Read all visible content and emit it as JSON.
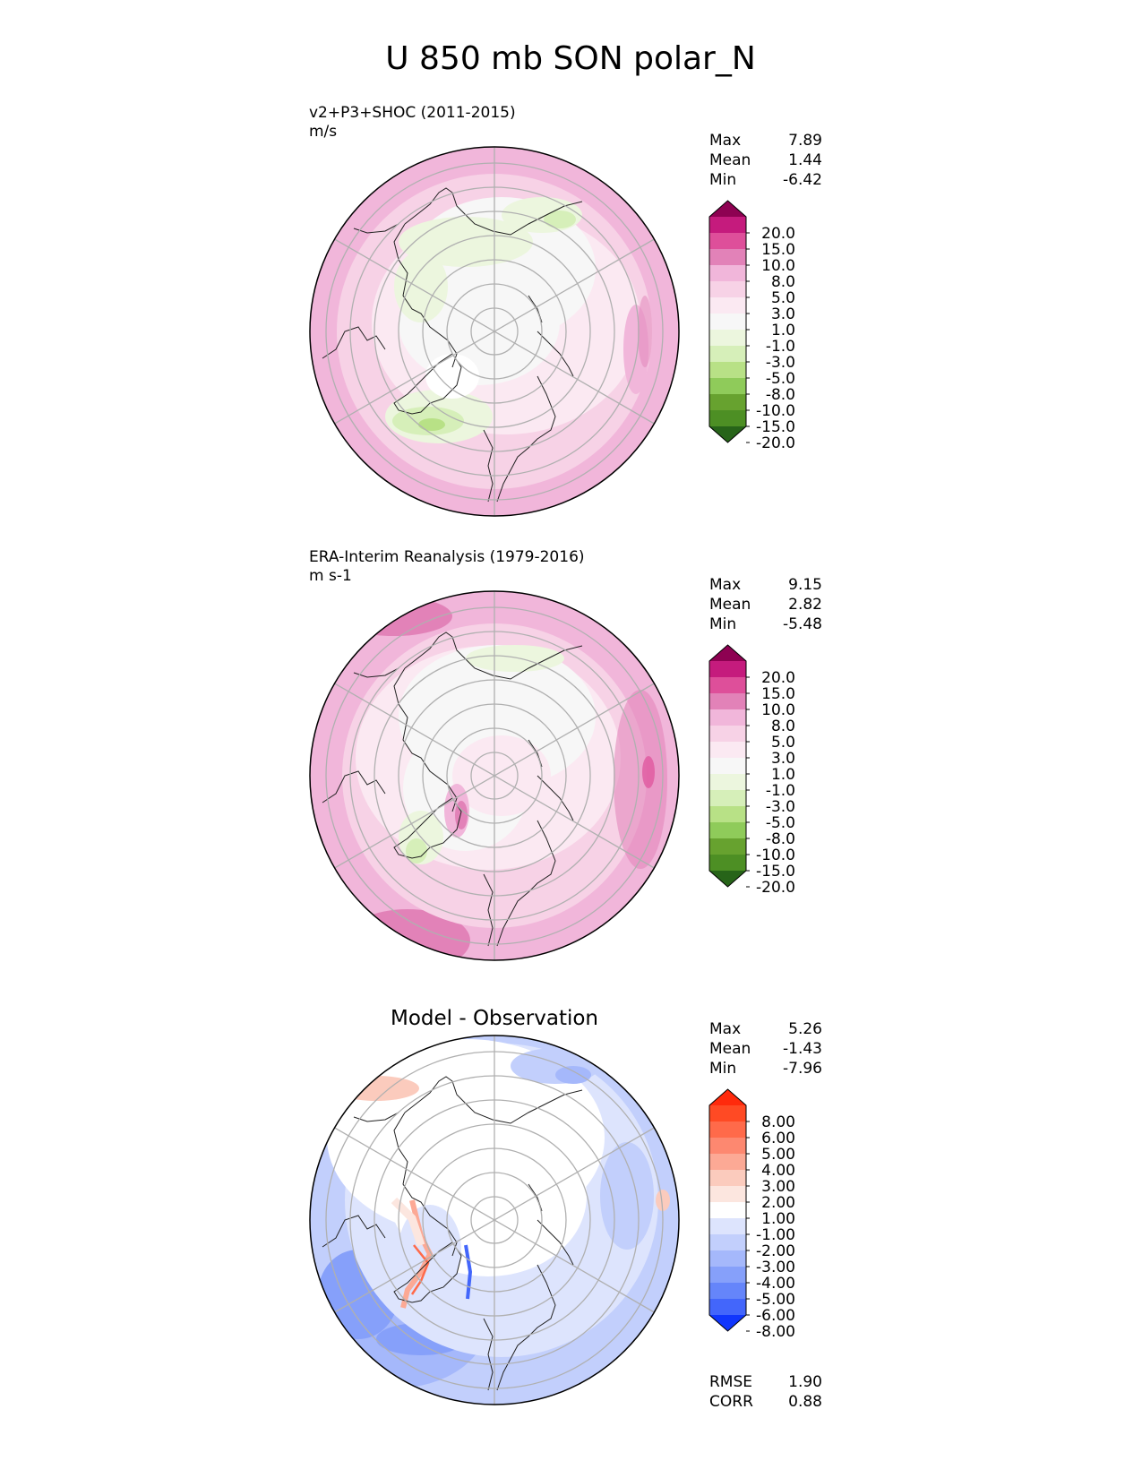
{
  "figure": {
    "title": "U 850 mb SON polar_N"
  },
  "panels": [
    {
      "id": "model",
      "name": "v2+P3+SHOC (2011-2015)",
      "units": "m/s",
      "stats": [
        {
          "label": "Max",
          "value": "7.89"
        },
        {
          "label": "Mean",
          "value": "1.44"
        },
        {
          "label": "Min",
          "value": "-6.42"
        }
      ],
      "colorbar": {
        "labels": [
          "20.0",
          "15.0",
          "10.0",
          "8.0",
          "5.0",
          "3.0",
          "1.0",
          "-1.0",
          "-3.0",
          "-5.0",
          "-8.0",
          "-10.0",
          "-15.0",
          "-20.0"
        ],
        "colors": [
          "#8e0152",
          "#c51b7d",
          "#de4f9a",
          "#e282b8",
          "#f1b6da",
          "#f7d2e6",
          "#fbe9f2",
          "#f7f7f7",
          "#ecf6de",
          "#d6efb9",
          "#b8e186",
          "#8fcb5a",
          "#67a22f",
          "#4d8f24",
          "#276419"
        ]
      }
    },
    {
      "id": "obs",
      "name": "ERA-Interim Reanalysis (1979-2016)",
      "units": "m s-1",
      "stats": [
        {
          "label": "Max",
          "value": "9.15"
        },
        {
          "label": "Mean",
          "value": "2.82"
        },
        {
          "label": "Min",
          "value": "-5.48"
        }
      ],
      "colorbar": {
        "labels": [
          "20.0",
          "15.0",
          "10.0",
          "8.0",
          "5.0",
          "3.0",
          "1.0",
          "-1.0",
          "-3.0",
          "-5.0",
          "-8.0",
          "-10.0",
          "-15.0",
          "-20.0"
        ],
        "colors": [
          "#8e0152",
          "#c51b7d",
          "#de4f9a",
          "#e282b8",
          "#f1b6da",
          "#f7d2e6",
          "#fbe9f2",
          "#f7f7f7",
          "#ecf6de",
          "#d6efb9",
          "#b8e186",
          "#8fcb5a",
          "#67a22f",
          "#4d8f24",
          "#276419"
        ]
      }
    },
    {
      "id": "diff",
      "title": "Model - Observation",
      "stats": [
        {
          "label": "Max",
          "value": "5.26"
        },
        {
          "label": "Mean",
          "value": "-1.43"
        },
        {
          "label": "Min",
          "value": "-7.96"
        }
      ],
      "extra_stats": [
        {
          "label": "RMSE",
          "value": "1.90"
        },
        {
          "label": "CORR",
          "value": "0.88"
        }
      ],
      "colorbar": {
        "labels": [
          "8.00",
          "6.00",
          "5.00",
          "4.00",
          "3.00",
          "2.00",
          "1.00",
          "-1.00",
          "-2.00",
          "-3.00",
          "-4.00",
          "-5.00",
          "-6.00",
          "-8.00"
        ],
        "colors": [
          "#ff2a0c",
          "#ff4a24",
          "#ff6a4a",
          "#fd8870",
          "#fca995",
          "#fbcbbd",
          "#fce6df",
          "#ffffff",
          "#dde4fd",
          "#c2cffc",
          "#a5b8fb",
          "#86a0fa",
          "#6585fa",
          "#4366fb",
          "#1036fd"
        ]
      }
    }
  ]
}
